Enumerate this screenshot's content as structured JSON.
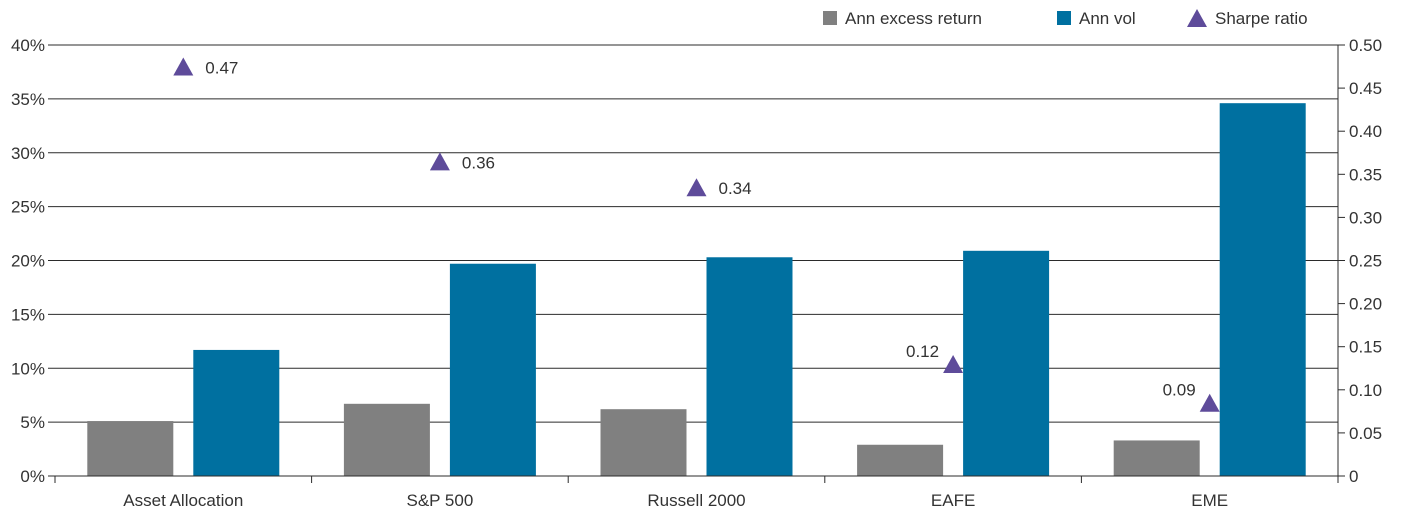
{
  "chart_data": {
    "type": "bar",
    "categories": [
      "Asset Allocation",
      "S&P 500",
      "Russell 2000",
      "EAFE",
      "EME"
    ],
    "series": [
      {
        "name": "Ann excess return",
        "kind": "bar",
        "axis": "left",
        "color": "#808080",
        "values": [
          5.1,
          6.7,
          6.2,
          2.9,
          3.3
        ]
      },
      {
        "name": "Ann vol",
        "kind": "bar",
        "axis": "left",
        "color": "#0070A0",
        "values": [
          11.7,
          19.7,
          20.3,
          20.9,
          34.6
        ]
      },
      {
        "name": "Sharpe ratio",
        "kind": "marker",
        "marker": "triangle",
        "axis": "right",
        "color": "#5E4B9A",
        "values": [
          0.47,
          0.36,
          0.34,
          0.12,
          0.09
        ],
        "labels": [
          "0.47",
          "0.36",
          "0.34",
          "0.12",
          "0.09"
        ],
        "plotted": [
          0.475,
          0.365,
          0.335,
          0.13,
          0.085
        ]
      }
    ],
    "y_left": {
      "range": [
        0,
        40
      ],
      "ticks": [
        "0%",
        "5%",
        "10%",
        "15%",
        "20%",
        "25%",
        "30%",
        "35%",
        "40%"
      ]
    },
    "y_right": {
      "range": [
        0,
        0.5
      ],
      "ticks": [
        "0",
        "0.05",
        "0.10",
        "0.15",
        "0.20",
        "0.25",
        "0.30",
        "0.35",
        "0.40",
        "0.45",
        "0.50"
      ]
    },
    "grid": true,
    "legend_position": "top-right"
  }
}
